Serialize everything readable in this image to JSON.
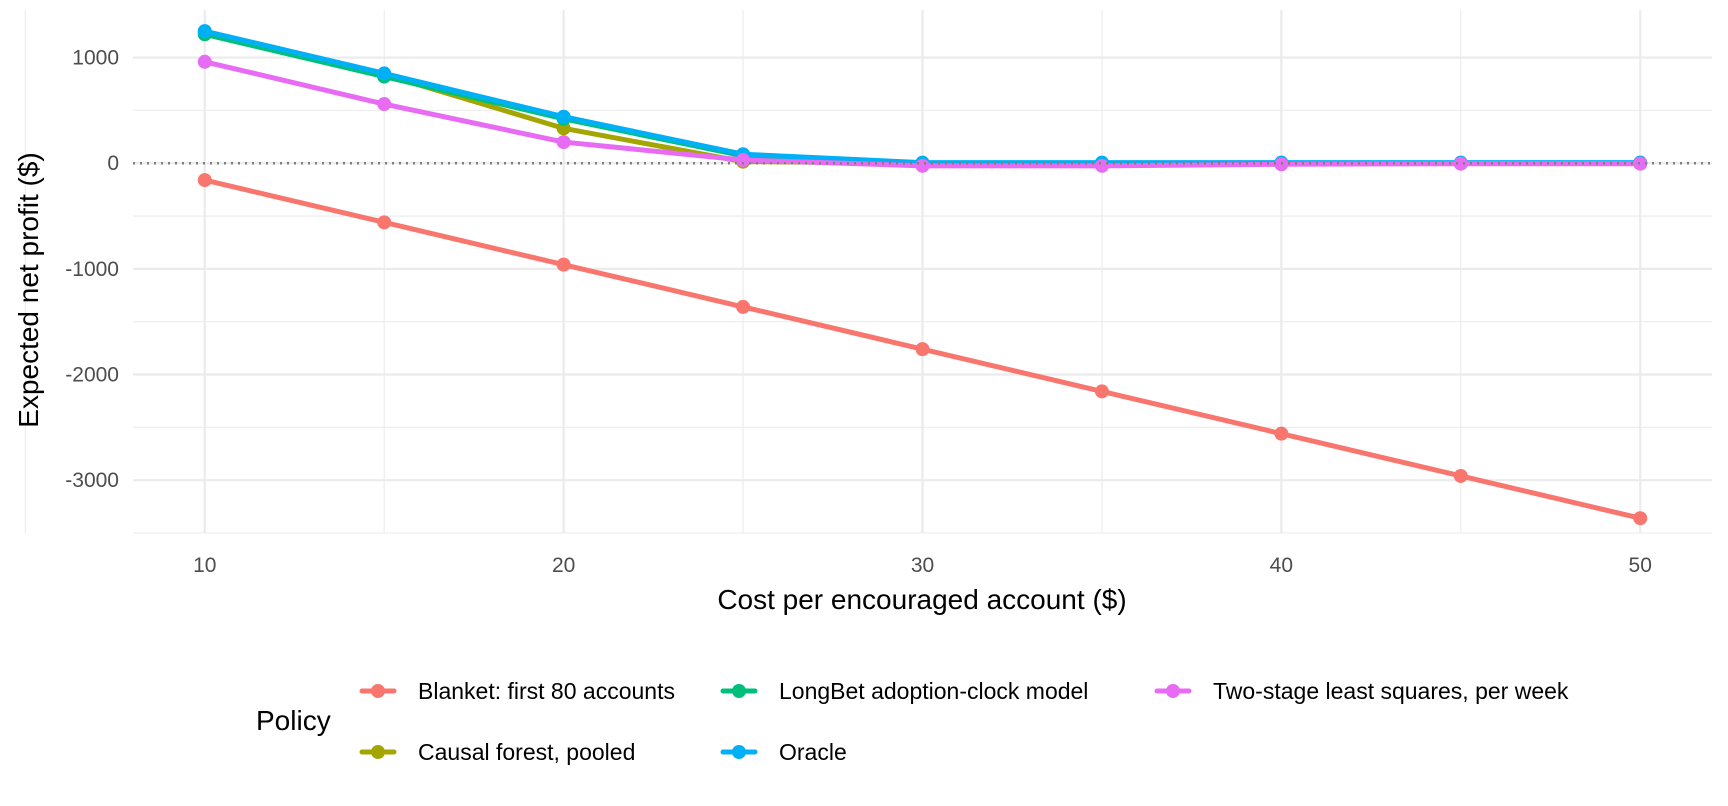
{
  "chart_data": {
    "type": "line",
    "title": "",
    "xlabel": "Cost per encouraged account ($)",
    "ylabel": "Expected net profit ($)",
    "xlim": [
      8,
      52
    ],
    "ylim": [
      -3500,
      1450
    ],
    "x_ticks": [
      10,
      20,
      30,
      40,
      50
    ],
    "x_tick_labels": [
      "10",
      "20",
      "30",
      "40",
      "50"
    ],
    "y_ticks": [
      1000,
      0,
      -1000,
      -2000,
      -3000
    ],
    "y_tick_labels": [
      "1000",
      "0",
      "-1000",
      "-2000",
      "-3000"
    ],
    "grid": true,
    "reference_line": {
      "y": 0,
      "style": "dotted"
    },
    "legend": {
      "title": "Policy",
      "position": "bottom"
    },
    "x": [
      10,
      15,
      20,
      25,
      30,
      35,
      40,
      45,
      50
    ],
    "series": [
      {
        "name": "Blanket: first 80 accounts",
        "color": "#F8766D",
        "values": [
          -160,
          -560,
          -960,
          -1360,
          -1760,
          -2160,
          -2560,
          -2960,
          -3360
        ]
      },
      {
        "name": "Causal forest, pooled",
        "color": "#A3A500",
        "values": [
          1240,
          840,
          330,
          15,
          0,
          0,
          0,
          0,
          0
        ]
      },
      {
        "name": "LongBet adoption-clock model",
        "color": "#00BF7D",
        "values": [
          1220,
          820,
          420,
          70,
          0,
          0,
          0,
          0,
          0
        ]
      },
      {
        "name": "Oracle",
        "color": "#00B0F6",
        "values": [
          1250,
          850,
          440,
          85,
          5,
          5,
          5,
          5,
          5
        ]
      },
      {
        "name": "Two-stage least squares, per week",
        "color": "#E76BF3",
        "values": [
          960,
          560,
          200,
          30,
          -25,
          -25,
          -10,
          -5,
          -5
        ]
      }
    ]
  }
}
